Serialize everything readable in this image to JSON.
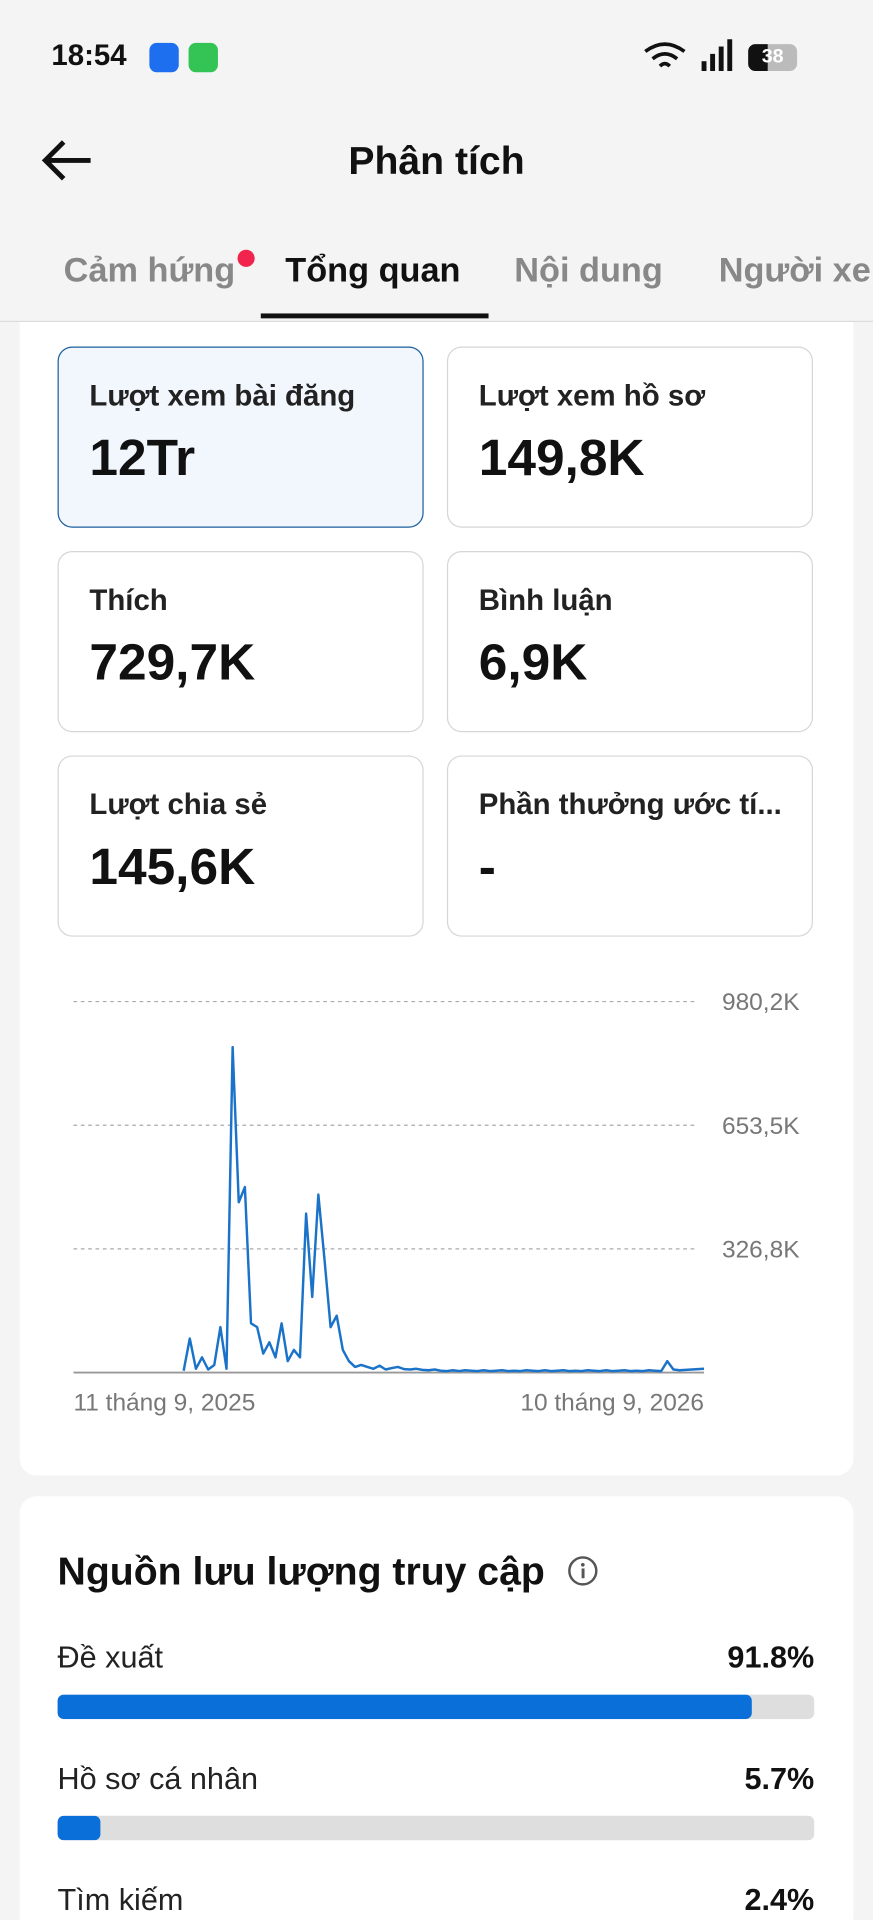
{
  "status_bar": {
    "time": "18:54",
    "battery": "38"
  },
  "header": {
    "title": "Phân tích"
  },
  "tabs": [
    "Cảm hứng",
    "Tổng quan",
    "Nội dung",
    "Người xem"
  ],
  "metrics": [
    {
      "label": "Lượt xem bài đăng",
      "value": "12Tr"
    },
    {
      "label": "Lượt xem hồ sơ",
      "value": "149,8K"
    },
    {
      "label": "Thích",
      "value": "729,7K"
    },
    {
      "label": "Bình luận",
      "value": "6,9K"
    },
    {
      "label": "Lượt chia sẻ",
      "value": "145,6K"
    },
    {
      "label": "Phần thưởng ước tí...",
      "value": "-"
    }
  ],
  "chart_data": {
    "type": "line",
    "color": "#1a73c8",
    "categories": [
      "11 tháng 9, 2025",
      null,
      null,
      null,
      null,
      null,
      null,
      null,
      null,
      null,
      null,
      null,
      null,
      null,
      null,
      null,
      null,
      null,
      null,
      null,
      null,
      null,
      null,
      null,
      null,
      null,
      null,
      null,
      null,
      null,
      null,
      null,
      null,
      null,
      null,
      null,
      null,
      null,
      null,
      null,
      null,
      null,
      null,
      null,
      null,
      null,
      null,
      null,
      null,
      null,
      null,
      null,
      null,
      null,
      null,
      null,
      null,
      null,
      null,
      null,
      null,
      null,
      null,
      null,
      null,
      null,
      null,
      null,
      null,
      null,
      null,
      null,
      null,
      null,
      null,
      null,
      null,
      null,
      null,
      null,
      null,
      null,
      null,
      null,
      null,
      null,
      null,
      null,
      null,
      null,
      null,
      null,
      null,
      null,
      null,
      null,
      null,
      null,
      null,
      null,
      null,
      null,
      null,
      "10 tháng 9, 2026"
    ],
    "values": [
      null,
      null,
      null,
      null,
      null,
      null,
      null,
      null,
      null,
      null,
      null,
      null,
      null,
      null,
      null,
      null,
      null,
      null,
      5000,
      90000,
      10000,
      40000,
      8000,
      20000,
      120000,
      10000,
      860000,
      450000,
      490000,
      130000,
      120000,
      50000,
      80000,
      40000,
      130000,
      30000,
      60000,
      40000,
      420000,
      200000,
      470000,
      300000,
      120000,
      150000,
      60000,
      30000,
      15000,
      20000,
      15000,
      10000,
      18000,
      8000,
      12000,
      15000,
      9000,
      8000,
      10000,
      7000,
      6000,
      8000,
      5000,
      4000,
      6000,
      4000,
      6000,
      5000,
      4000,
      6000,
      4000,
      5000,
      6000,
      4000,
      5000,
      4000,
      6000,
      5000,
      4000,
      6000,
      4000,
      5000,
      6000,
      4000,
      5000,
      4000,
      6000,
      5000,
      4000,
      6000,
      4000,
      5000,
      6000,
      4000,
      5000,
      4000,
      6000,
      5000,
      4000,
      30000,
      8000,
      6000,
      7000,
      8000,
      9000,
      10000
    ],
    "ylim": [
      0,
      980200
    ],
    "yticks": [
      {
        "value": 326800,
        "label": "326,8K"
      },
      {
        "value": 653500,
        "label": "653,5K"
      },
      {
        "value": 980200,
        "label": "980,2K"
      }
    ]
  },
  "traffic": {
    "title": "Nguồn lưu lượng truy cập",
    "items": [
      {
        "label": "Đề xuất",
        "value": 91.8,
        "value_label": "91.8%"
      },
      {
        "label": "Hồ sơ cá nhân",
        "value": 5.7,
        "value_label": "5.7%"
      },
      {
        "label": "Tìm kiếm",
        "value": 2.4,
        "value_label": "2.4%"
      }
    ]
  }
}
